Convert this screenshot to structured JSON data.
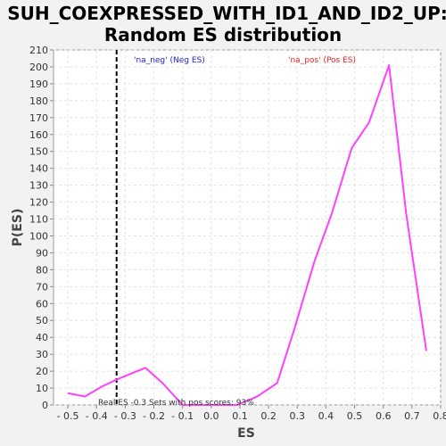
{
  "chart_data": {
    "type": "line",
    "title_lines": [
      "SUH_COEXPRESSED_WITH_ID1_AND_ID2_UP:",
      "Random ES distribution"
    ],
    "xlabel": "ES",
    "ylabel": "P(ES)",
    "xlim": [
      -0.55,
      0.8
    ],
    "ylim": [
      0,
      210
    ],
    "x_ticks": [
      -0.5,
      -0.4,
      -0.3,
      -0.2,
      -0.1,
      0.0,
      0.1,
      0.2,
      0.3,
      0.4,
      0.5,
      0.6,
      0.7,
      0.8
    ],
    "x_tick_labels": [
      "- 0.5",
      "- 0.4",
      "- 0.3",
      "- 0.2",
      "- 0.1",
      "0.0",
      "0.1",
      "0.2",
      "0.3",
      "0.4",
      "0.5",
      "0.6",
      "0.7",
      "0.8"
    ],
    "y_ticks": [
      0,
      10,
      20,
      30,
      40,
      50,
      60,
      70,
      80,
      90,
      100,
      110,
      120,
      130,
      140,
      150,
      160,
      170,
      180,
      190,
      200,
      210
    ],
    "grid": true,
    "series": [
      {
        "color": "#ff40ff",
        "x": [
          -0.5,
          -0.44,
          -0.38,
          -0.33,
          -0.23,
          -0.17,
          -0.1,
          -0.04,
          0.02,
          0.09,
          0.16,
          0.23,
          0.29,
          0.36,
          0.42,
          0.49,
          0.55,
          0.62,
          0.68,
          0.75
        ],
        "y": [
          7,
          5,
          11,
          15,
          22,
          13,
          0,
          0,
          0,
          0,
          5,
          13,
          45,
          85,
          113,
          152,
          167,
          201,
          113,
          32
        ]
      }
    ],
    "real_es_line": {
      "x": -0.33,
      "color": "#000000"
    },
    "legend": [
      {
        "label": "'na_neg' (Neg ES)",
        "color": "#2222dd"
      },
      {
        "label": "'na_pos' (Pos ES)",
        "color": "#ee2222"
      }
    ],
    "annotation": "Real ES -0.3   Sets with pos scores: 93%"
  }
}
